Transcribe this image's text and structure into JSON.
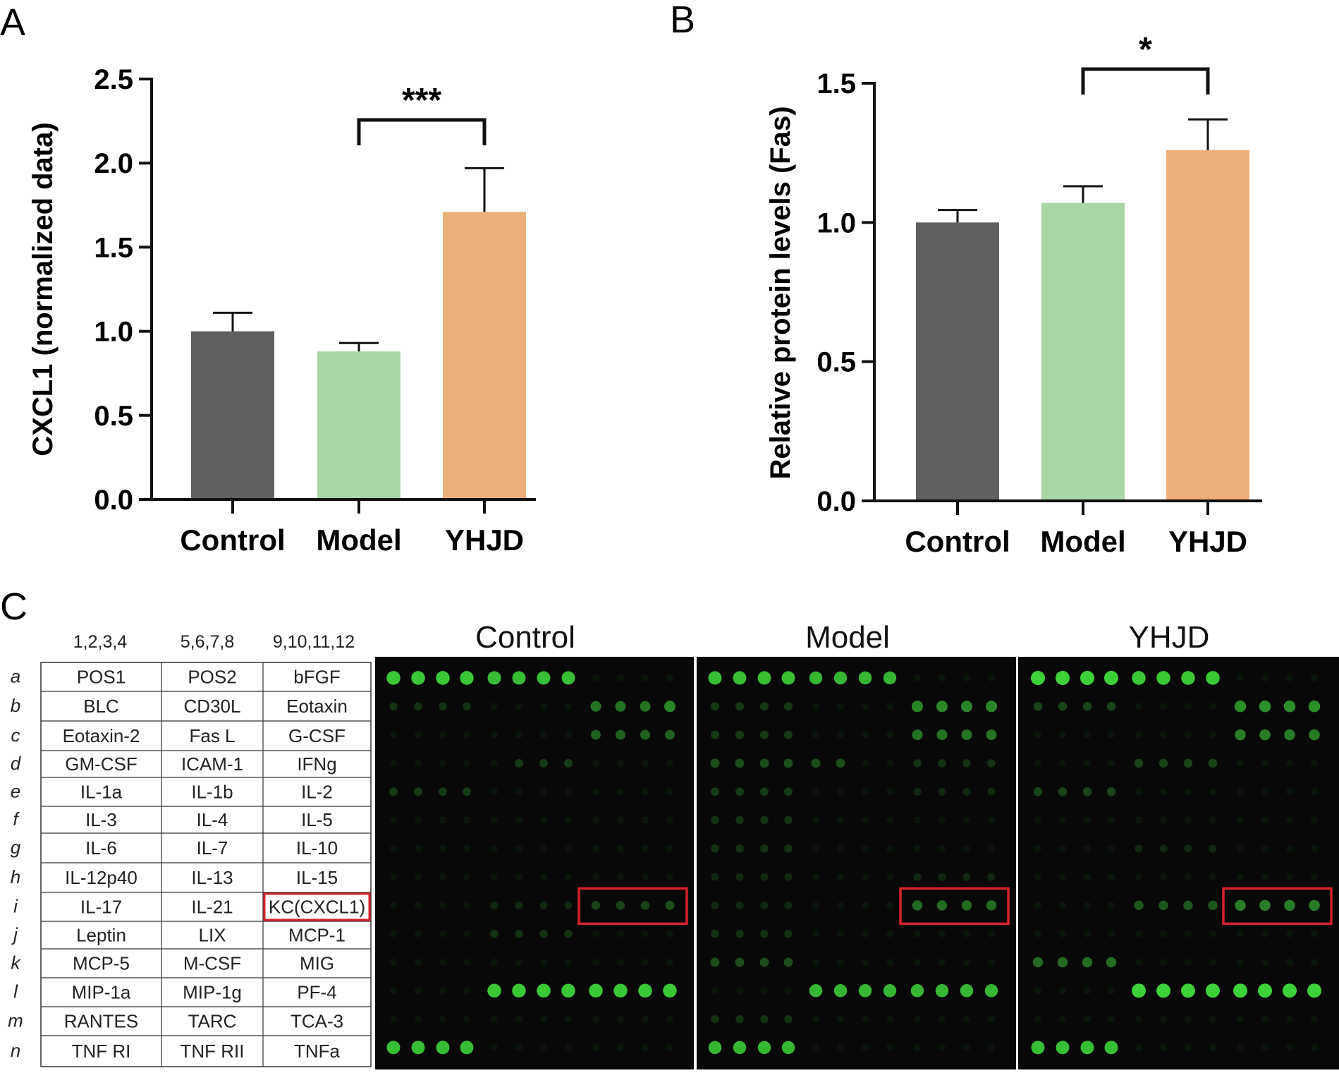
{
  "panels": {
    "A": {
      "letter": "A"
    },
    "B": {
      "letter": "B"
    },
    "C": {
      "letter": "C"
    }
  },
  "colors": {
    "control": "#5f605f",
    "model": "#a9d6a5",
    "yhjd": "#ecb07a",
    "highlight": "#d7222a",
    "array_bg": "#080808",
    "spot": "#3ed23a"
  },
  "chart_data": [
    {
      "panel": "A",
      "type": "bar",
      "categories": [
        "Control",
        "Model",
        "YHJD"
      ],
      "values": [
        1.0,
        0.88,
        1.71
      ],
      "errors": [
        0.11,
        0.05,
        0.26
      ],
      "ylabel": "CXCL1 (normalized data)",
      "ylim": [
        0,
        2.5
      ],
      "ticks": [
        "0.0",
        "0.5",
        "1.0",
        "1.5",
        "2.0",
        "2.5"
      ],
      "tick_values": [
        0,
        0.5,
        1.0,
        1.5,
        2.0,
        2.5
      ],
      "significance": {
        "from": 1,
        "to": 2,
        "label": "***"
      }
    },
    {
      "panel": "B",
      "type": "bar",
      "categories": [
        "Control",
        "Model",
        "YHJD"
      ],
      "values": [
        1.0,
        1.07,
        1.26
      ],
      "errors": [
        0.045,
        0.06,
        0.11
      ],
      "ylabel": "Relative protein levels (Fas)",
      "ylim": [
        0,
        1.5
      ],
      "ticks": [
        "0.0",
        "0.5",
        "1.0",
        "1.5"
      ],
      "tick_values": [
        0,
        0.5,
        1.0,
        1.5
      ],
      "significance": {
        "from": 1,
        "to": 2,
        "label": "*"
      }
    }
  ],
  "array_table": {
    "col_headers": [
      "1,2,3,4",
      "5,6,7,8",
      "9,10,11,12"
    ],
    "rows": [
      {
        "letter": "a",
        "cells": [
          "POS1",
          "POS2",
          "bFGF"
        ]
      },
      {
        "letter": "b",
        "cells": [
          "BLC",
          "CD30L",
          "Eotaxin"
        ]
      },
      {
        "letter": "c",
        "cells": [
          "Eotaxin-2",
          "Fas L",
          "G-CSF"
        ]
      },
      {
        "letter": "d",
        "cells": [
          "GM-CSF",
          "ICAM-1",
          "IFNg"
        ]
      },
      {
        "letter": "e",
        "cells": [
          "IL-1a",
          "IL-1b",
          "IL-2"
        ]
      },
      {
        "letter": "f",
        "cells": [
          "IL-3",
          "IL-4",
          "IL-5"
        ]
      },
      {
        "letter": "g",
        "cells": [
          "IL-6",
          "IL-7",
          "IL-10"
        ]
      },
      {
        "letter": "h",
        "cells": [
          "IL-12p40",
          "IL-13",
          "IL-15"
        ]
      },
      {
        "letter": "i",
        "cells": [
          "IL-17",
          "IL-21",
          "KC(CXCL1)"
        ]
      },
      {
        "letter": "j",
        "cells": [
          "Leptin",
          "LIX",
          "MCP-1"
        ]
      },
      {
        "letter": "k",
        "cells": [
          "MCP-5",
          "M-CSF",
          "MIG"
        ]
      },
      {
        "letter": "l",
        "cells": [
          "MIP-1a",
          "MIP-1g",
          "PF-4"
        ]
      },
      {
        "letter": "m",
        "cells": [
          "RANTES",
          "TARC",
          "TCA-3"
        ]
      },
      {
        "letter": "n",
        "cells": [
          "TNF RI",
          "TNF RII",
          "TNFa"
        ]
      }
    ],
    "highlight": {
      "row": 8,
      "col": 2
    }
  },
  "arrays": [
    {
      "label": "Control",
      "intensity": [
        [
          0.95,
          0.95,
          0.95,
          0.95,
          0.9,
          0.9,
          0.9,
          0.9,
          0,
          0,
          0,
          0
        ],
        [
          0.15,
          0.15,
          0.15,
          0.15,
          0,
          0,
          0,
          0,
          0.5,
          0.5,
          0.5,
          0.6
        ],
        [
          0,
          0,
          0,
          0,
          0,
          0,
          0,
          0,
          0.4,
          0.4,
          0.4,
          0.4
        ],
        [
          0,
          0,
          0,
          0,
          0,
          0.2,
          0.2,
          0.2,
          0,
          0,
          0,
          0
        ],
        [
          0.2,
          0.2,
          0.2,
          0.2,
          0,
          0,
          0,
          0,
          0,
          0,
          0,
          0
        ],
        [
          0,
          0,
          0,
          0,
          0,
          0,
          0,
          0,
          0,
          0,
          0,
          0
        ],
        [
          0,
          0,
          0,
          0,
          0,
          0,
          0,
          0,
          0,
          0,
          0,
          0
        ],
        [
          0,
          0,
          0,
          0,
          0,
          0,
          0,
          0,
          0,
          0,
          0,
          0
        ],
        [
          0,
          0,
          0,
          0,
          0.1,
          0.1,
          0.1,
          0.1,
          0.25,
          0.25,
          0.25,
          0.3
        ],
        [
          0,
          0,
          0,
          0,
          0.15,
          0.15,
          0.15,
          0.15,
          0,
          0,
          0,
          0
        ],
        [
          0,
          0,
          0,
          0,
          0,
          0,
          0,
          0,
          0,
          0,
          0,
          0
        ],
        [
          0,
          0,
          0,
          0,
          0.95,
          0.95,
          0.95,
          0.95,
          0.95,
          0.95,
          0.95,
          0.95
        ],
        [
          0,
          0,
          0,
          0,
          0,
          0,
          0,
          0,
          0,
          0,
          0,
          0
        ],
        [
          0.9,
          0.9,
          0.9,
          0.9,
          0,
          0,
          0,
          0,
          0,
          0,
          0,
          0
        ]
      ]
    },
    {
      "label": "Model",
      "intensity": [
        [
          0.9,
          0.9,
          0.9,
          0.9,
          0.85,
          0.85,
          0.85,
          0.85,
          0,
          0,
          0,
          0
        ],
        [
          0.2,
          0.2,
          0.2,
          0.2,
          0,
          0,
          0,
          0,
          0.6,
          0.6,
          0.6,
          0.6
        ],
        [
          0.2,
          0.2,
          0.2,
          0.2,
          0,
          0,
          0,
          0,
          0.5,
          0.5,
          0.5,
          0.5
        ],
        [
          0.3,
          0.3,
          0.3,
          0.3,
          0.3,
          0.3,
          0,
          0,
          0.15,
          0.15,
          0.15,
          0.15
        ],
        [
          0.2,
          0.2,
          0.2,
          0.2,
          0,
          0,
          0,
          0,
          0.1,
          0.1,
          0.1,
          0.1
        ],
        [
          0.15,
          0.15,
          0.15,
          0.15,
          0,
          0,
          0,
          0,
          0,
          0,
          0,
          0
        ],
        [
          0.15,
          0.15,
          0.15,
          0.15,
          0,
          0,
          0,
          0,
          0,
          0,
          0,
          0
        ],
        [
          0.1,
          0.1,
          0.1,
          0.1,
          0,
          0,
          0,
          0,
          0.1,
          0.1,
          0.1,
          0.1
        ],
        [
          0.1,
          0.1,
          0.1,
          0.1,
          0,
          0,
          0,
          0,
          0.45,
          0.45,
          0.45,
          0.45
        ],
        [
          0.15,
          0.15,
          0.15,
          0.15,
          0,
          0,
          0,
          0,
          0,
          0,
          0,
          0
        ],
        [
          0.3,
          0.3,
          0.3,
          0.3,
          0,
          0,
          0,
          0,
          0,
          0,
          0,
          0
        ],
        [
          0,
          0,
          0,
          0,
          0.85,
          0.85,
          0.85,
          0.85,
          0.85,
          0.85,
          0.85,
          0.85
        ],
        [
          0.15,
          0.15,
          0.15,
          0.15,
          0,
          0,
          0,
          0,
          0,
          0,
          0,
          0
        ],
        [
          0.85,
          0.85,
          0.85,
          0.85,
          0,
          0,
          0,
          0,
          0,
          0,
          0,
          0
        ]
      ]
    },
    {
      "label": "YHJD",
      "intensity": [
        [
          1,
          1,
          1,
          1,
          0.95,
          0.95,
          0.95,
          0.95,
          0,
          0,
          0,
          0
        ],
        [
          0.25,
          0.25,
          0.25,
          0.25,
          0,
          0,
          0,
          0,
          0.65,
          0.65,
          0.65,
          0.65
        ],
        [
          0,
          0,
          0,
          0,
          0,
          0,
          0,
          0,
          0.55,
          0.55,
          0.55,
          0.55
        ],
        [
          0,
          0,
          0,
          0,
          0.25,
          0.25,
          0.25,
          0.25,
          0,
          0,
          0,
          0
        ],
        [
          0.25,
          0.25,
          0.25,
          0.25,
          0,
          0,
          0,
          0,
          0,
          0,
          0,
          0
        ],
        [
          0,
          0,
          0,
          0,
          0,
          0,
          0,
          0,
          0,
          0,
          0,
          0
        ],
        [
          0,
          0,
          0,
          0,
          0.1,
          0.1,
          0.1,
          0.1,
          0,
          0,
          0,
          0
        ],
        [
          0,
          0,
          0,
          0,
          0,
          0,
          0,
          0,
          0,
          0,
          0,
          0
        ],
        [
          0,
          0,
          0,
          0,
          0.35,
          0.35,
          0.35,
          0.35,
          0.55,
          0.55,
          0.55,
          0.55
        ],
        [
          0,
          0,
          0,
          0,
          0,
          0,
          0,
          0,
          0,
          0,
          0,
          0
        ],
        [
          0.45,
          0.45,
          0.45,
          0.45,
          0,
          0,
          0,
          0,
          0,
          0,
          0,
          0
        ],
        [
          0,
          0,
          0,
          0,
          1,
          1,
          1,
          1,
          1,
          1,
          1,
          1
        ],
        [
          0,
          0,
          0,
          0,
          0,
          0,
          0,
          0,
          0,
          0,
          0,
          0
        ],
        [
          0.9,
          0.9,
          0.9,
          0.9,
          0,
          0,
          0,
          0,
          0,
          0,
          0,
          0
        ]
      ]
    }
  ]
}
